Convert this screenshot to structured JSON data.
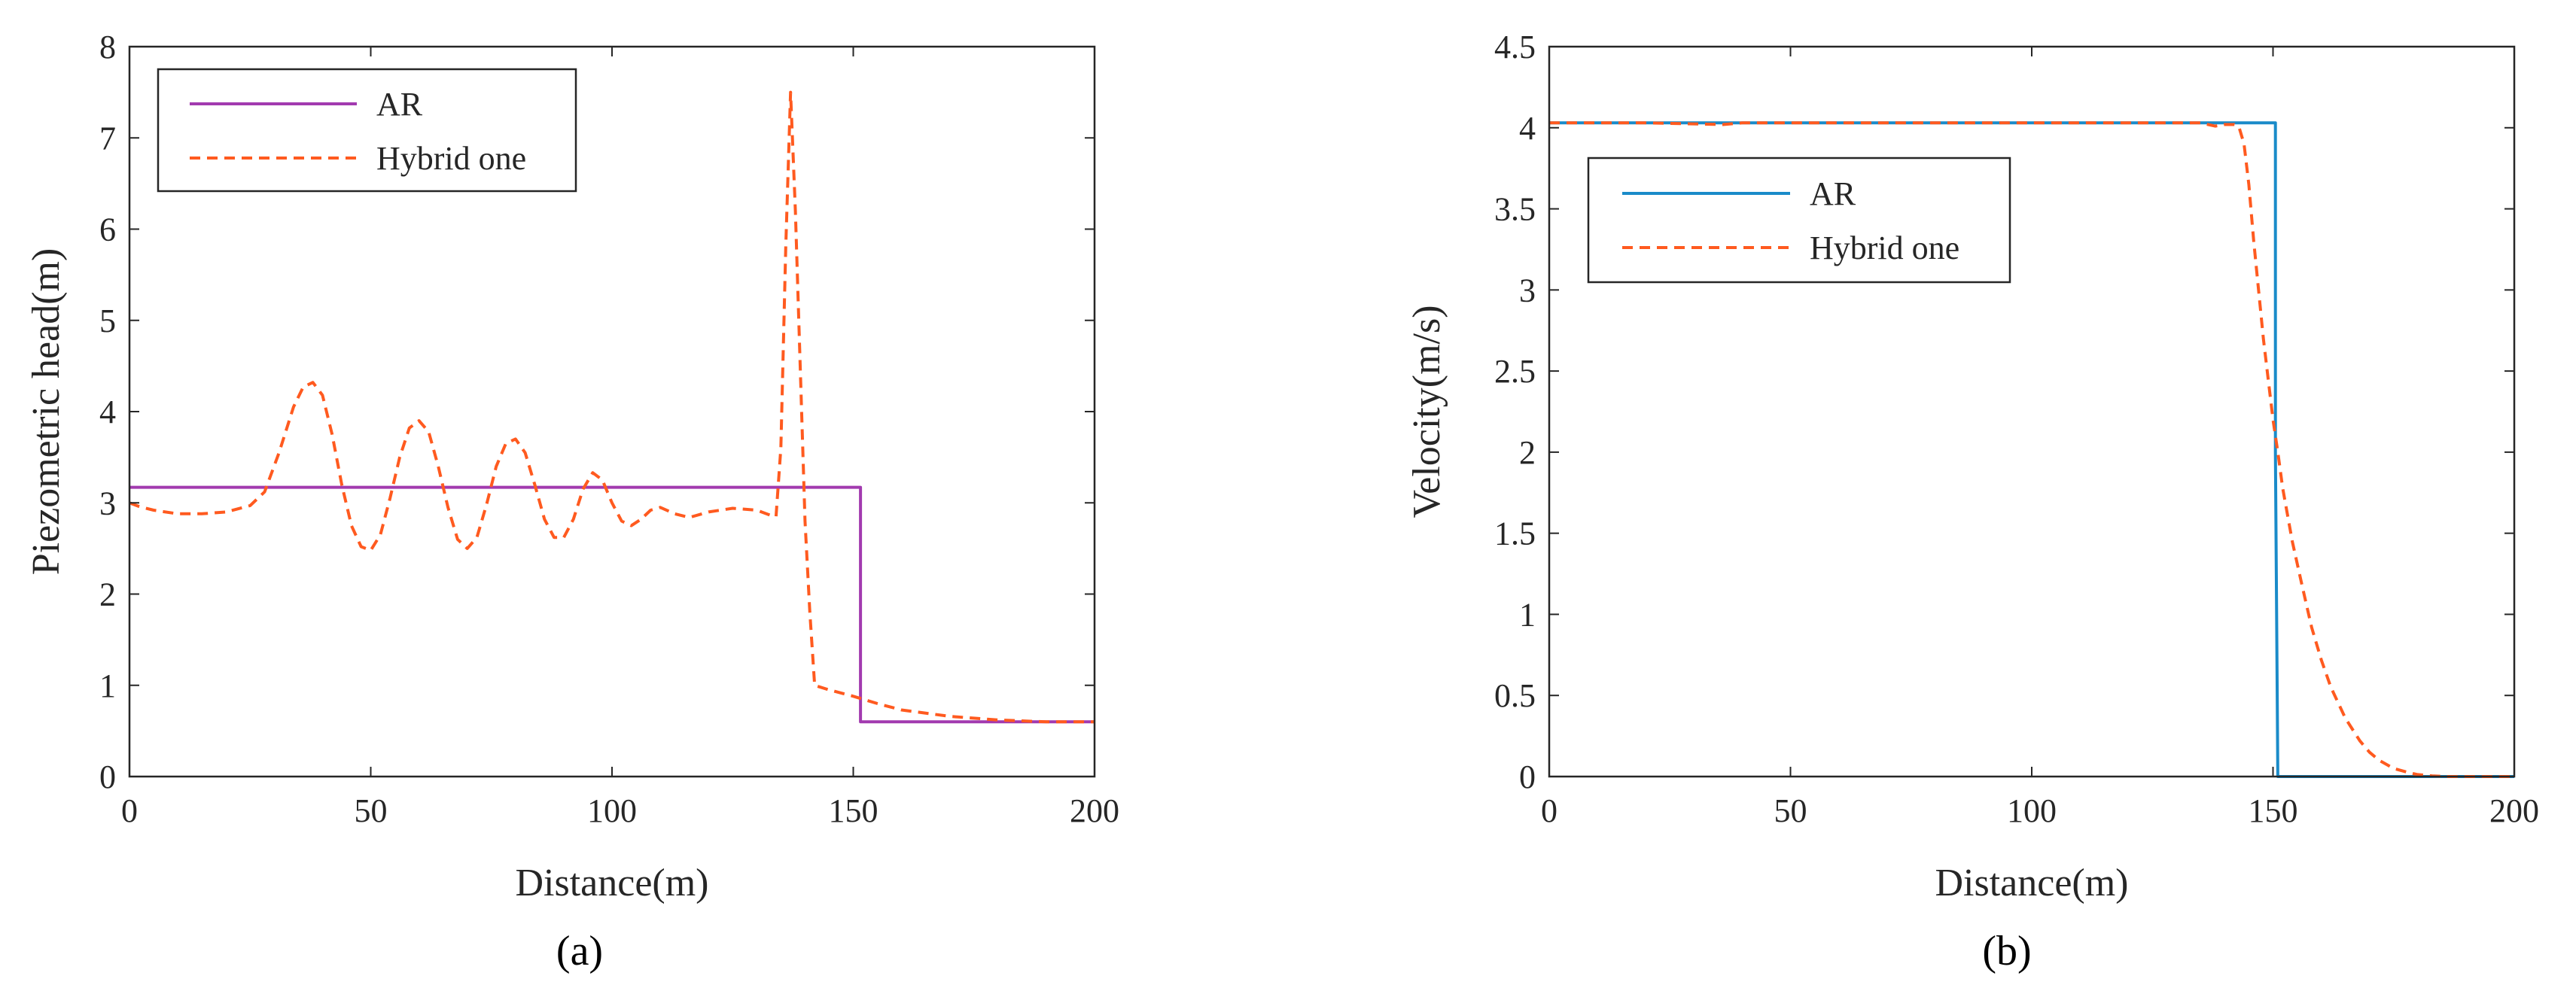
{
  "chart_data": [
    {
      "type": "line",
      "panel_label": "(a)",
      "xlabel": "Distance(m)",
      "ylabel": "Piezometric head(m)",
      "xlim": [
        0,
        200
      ],
      "ylim": [
        0,
        8
      ],
      "xticks": [
        0,
        50,
        100,
        150,
        200
      ],
      "yticks": [
        0,
        1,
        2,
        3,
        4,
        5,
        6,
        7,
        8
      ],
      "grid": false,
      "legend_position": "top-left",
      "series": [
        {
          "name": "AR",
          "color": "#A23AAF",
          "style": "solid",
          "x": [
            0,
            151.5,
            151.5,
            200
          ],
          "y": [
            3.17,
            3.17,
            0.6,
            0.6
          ]
        },
        {
          "name": "Hybrid one",
          "color": "#FF5A1F",
          "style": "dashed",
          "x": [
            0,
            2,
            5,
            10,
            15,
            20,
            25,
            28,
            31,
            34,
            36,
            38,
            40,
            42,
            44,
            46,
            48,
            50,
            52,
            54,
            56,
            58,
            60,
            62,
            64,
            66,
            68,
            70,
            72,
            74,
            76,
            78,
            80,
            82,
            84,
            86,
            88,
            90,
            92,
            94,
            96,
            98,
            100,
            102,
            104,
            106,
            108,
            110,
            113,
            116,
            120,
            125,
            130,
            133,
            134,
            135,
            136,
            137,
            138,
            139,
            140,
            141,
            142,
            145,
            150,
            155,
            160,
            170,
            180,
            190,
            200
          ],
          "y": [
            3.0,
            2.96,
            2.92,
            2.88,
            2.88,
            2.9,
            2.97,
            3.12,
            3.55,
            4.05,
            4.27,
            4.32,
            4.18,
            3.75,
            3.2,
            2.75,
            2.52,
            2.48,
            2.65,
            3.05,
            3.5,
            3.82,
            3.9,
            3.78,
            3.4,
            2.95,
            2.6,
            2.5,
            2.62,
            2.98,
            3.4,
            3.65,
            3.7,
            3.55,
            3.2,
            2.82,
            2.62,
            2.62,
            2.82,
            3.15,
            3.33,
            3.25,
            3.0,
            2.8,
            2.75,
            2.82,
            2.92,
            2.95,
            2.88,
            2.84,
            2.9,
            2.94,
            2.92,
            2.86,
            2.85,
            3.6,
            5.8,
            7.5,
            6.2,
            4.5,
            2.8,
            1.8,
            1.0,
            0.95,
            0.88,
            0.8,
            0.73,
            0.66,
            0.62,
            0.6,
            0.6
          ]
        }
      ]
    },
    {
      "type": "line",
      "panel_label": "(b)",
      "xlabel": "Distance(m)",
      "ylabel": "Velocity(m/s)",
      "xlim": [
        0,
        200
      ],
      "ylim": [
        0,
        4.5
      ],
      "xticks": [
        0,
        50,
        100,
        150,
        200
      ],
      "yticks": [
        0,
        0.5,
        1,
        1.5,
        2,
        2.5,
        3,
        3.5,
        4,
        4.5
      ],
      "ytick_labels": [
        "0",
        "0.5",
        "1",
        "1.5",
        "2",
        "2.5",
        "3",
        "3.5",
        "4",
        "4.5"
      ],
      "grid": false,
      "legend_position": "top-left",
      "series": [
        {
          "name": "AR",
          "color": "#1A8BC9",
          "style": "solid",
          "x": [
            0,
            150.5,
            150.5,
            151,
            200
          ],
          "y": [
            4.03,
            4.03,
            2.0,
            0.0,
            0.0
          ]
        },
        {
          "name": "Hybrid one",
          "color": "#FF5A1F",
          "style": "dashed",
          "x": [
            0,
            20,
            36,
            40,
            60,
            80,
            100,
            120,
            135,
            138,
            140,
            142,
            143,
            144,
            145,
            146,
            147,
            148,
            149,
            150,
            151,
            152,
            154,
            156,
            158,
            160,
            162,
            165,
            168,
            170,
            172,
            175,
            178,
            180,
            183,
            186,
            190,
            195,
            200
          ],
          "y": [
            4.03,
            4.03,
            4.02,
            4.03,
            4.03,
            4.03,
            4.03,
            4.03,
            4.03,
            4.01,
            4.02,
            4.02,
            4.0,
            3.9,
            3.65,
            3.3,
            3.0,
            2.7,
            2.45,
            2.2,
            2.0,
            1.78,
            1.45,
            1.18,
            0.92,
            0.72,
            0.55,
            0.36,
            0.22,
            0.15,
            0.1,
            0.05,
            0.025,
            0.012,
            0.004,
            0.0,
            0.0,
            0.0,
            0.0
          ]
        }
      ]
    }
  ]
}
